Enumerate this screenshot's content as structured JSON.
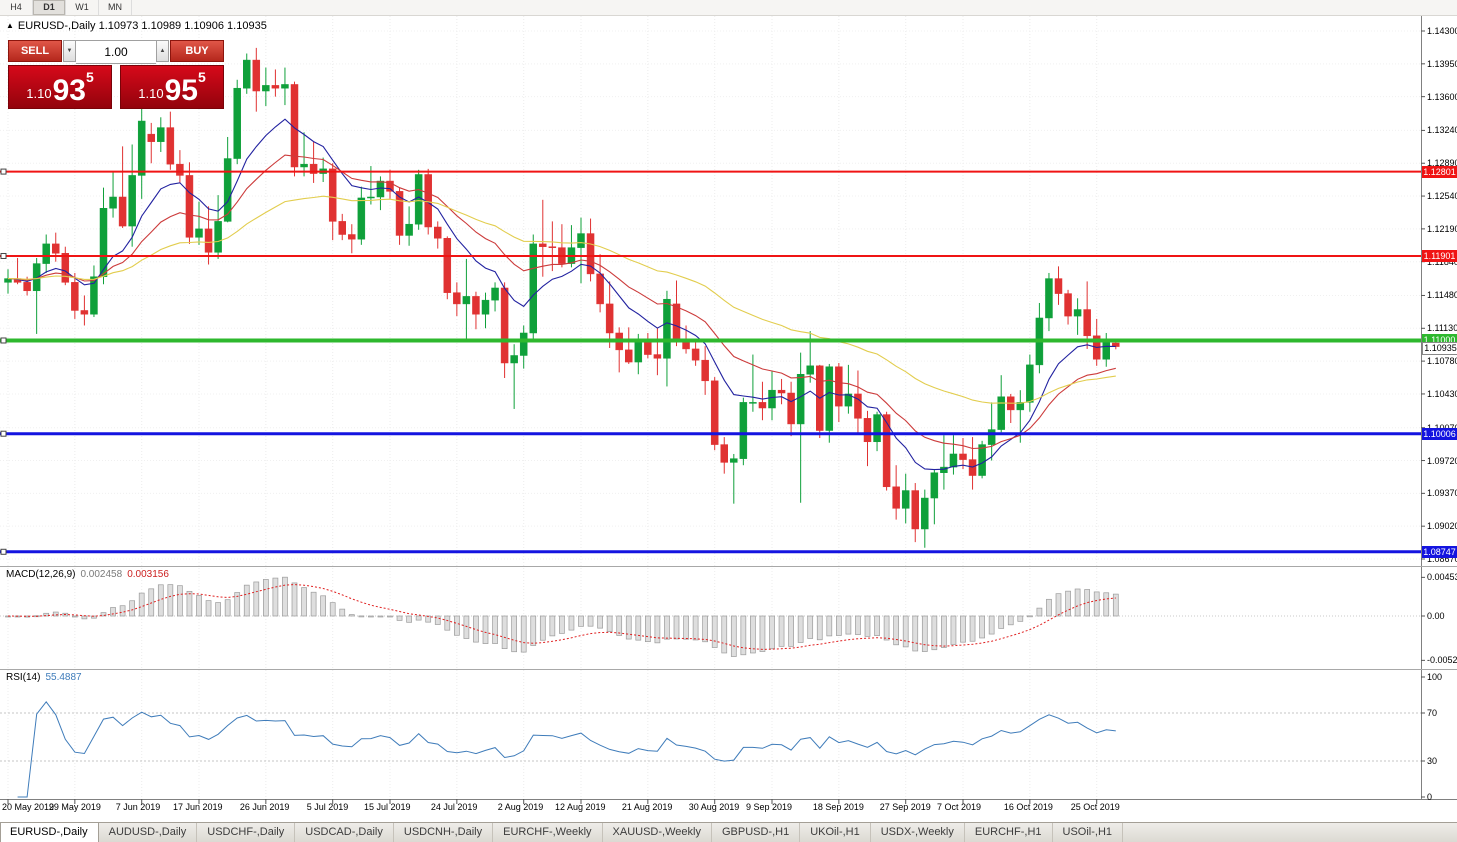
{
  "toolbar": {
    "timeframes": [
      {
        "label": "H4",
        "active": false
      },
      {
        "label": "D1",
        "active": true
      },
      {
        "label": "W1",
        "active": false
      },
      {
        "label": "MN",
        "active": false
      }
    ]
  },
  "chart": {
    "collapse_icon": "▲",
    "title": "EURUSD-,Daily 1.10973 1.10989 1.10906 1.10935"
  },
  "trade": {
    "sell_label": "SELL",
    "buy_label": "BUY",
    "volume": "1.00",
    "spin_down_icon": "▼",
    "spin_up_icon": "▲",
    "bid": {
      "prefix": "1.10",
      "big": "93",
      "sup": "5"
    },
    "ask": {
      "prefix": "1.10",
      "big": "95",
      "sup": "5"
    }
  },
  "indicators": {
    "macd": {
      "name": "MACD(12,26,9)",
      "main": "0.002458",
      "signal": "0.003156",
      "axis": [
        "0.00453",
        "0.00",
        "-0.00520"
      ]
    },
    "rsi": {
      "name": "RSI(14)",
      "value": "55.4887",
      "axis": [
        "100",
        "70",
        "30",
        "0"
      ]
    }
  },
  "tabs": [
    {
      "label": "EURUSD-,Daily",
      "active": true
    },
    {
      "label": "AUDUSD-,Daily",
      "active": false
    },
    {
      "label": "USDCHF-,Daily",
      "active": false
    },
    {
      "label": "USDCAD-,Daily",
      "active": false
    },
    {
      "label": "USDCNH-,Daily",
      "active": false
    },
    {
      "label": "EURCHF-,Weekly",
      "active": false
    },
    {
      "label": "XAUUSD-,Weekly",
      "active": false
    },
    {
      "label": "GBPUSD-,H1",
      "active": false
    },
    {
      "label": "UKOil-,H1",
      "active": false
    },
    {
      "label": "USDX-,Weekly",
      "active": false
    },
    {
      "label": "EURCHF-,H1",
      "active": false
    },
    {
      "label": "USOil-,H1",
      "active": false
    }
  ],
  "chart_data": {
    "type": "candlestick",
    "symbol": "EURUSD-",
    "period": "Daily",
    "ohlc_current": {
      "open": "1.10973",
      "high": "1.10989",
      "low": "1.10906",
      "close": "1.10935"
    },
    "up_color": "#0fa03a",
    "down_color": "#e03232",
    "price_axis": {
      "labels": [
        "1.14300",
        "1.13950",
        "1.13600",
        "1.13240",
        "1.12890",
        "1.12540",
        "1.12190",
        "1.11840",
        "1.11480",
        "1.11130",
        "1.10780",
        "1.10430",
        "1.10070",
        "1.09720",
        "1.09370",
        "1.09020",
        "1.08670"
      ],
      "max": 1.143,
      "min": 1.0867
    },
    "levels": [
      {
        "value": 1.12801,
        "label": "1.12801",
        "color": "#f01414",
        "width": 2
      },
      {
        "value": 1.11901,
        "label": "1.11901",
        "color": "#f01414",
        "width": 2
      },
      {
        "value": 1.11,
        "label": "1.11000",
        "color": "#2eb82e",
        "width": 4
      },
      {
        "value": 1.10006,
        "label": "1.10006",
        "color": "#1414e0",
        "width": 3
      },
      {
        "value": 1.08747,
        "label": "1.08747",
        "color": "#1414e0",
        "width": 3
      }
    ],
    "current_price": {
      "label": "1.10935",
      "value": 1.10935
    },
    "ma": [
      {
        "name": "ma-fast-blue",
        "period": 10,
        "color": "#2222a0"
      },
      {
        "name": "ma-mid-red",
        "period": 20,
        "color": "#cc3b3b"
      },
      {
        "name": "ma-slow-yellow",
        "period": 45,
        "color": "#e2cd4e"
      }
    ],
    "date_labels": [
      {
        "index": 0,
        "label": "20 May 2019"
      },
      {
        "index": 7,
        "label": "29 May 2019"
      },
      {
        "index": 14,
        "label": "7 Jun 2019"
      },
      {
        "index": 20,
        "label": "17 Jun 2019"
      },
      {
        "index": 27,
        "label": "26 Jun 2019"
      },
      {
        "index": 34,
        "label": "5 Jul 2019"
      },
      {
        "index": 40,
        "label": "15 Jul 2019"
      },
      {
        "index": 47,
        "label": "24 Jul 2019"
      },
      {
        "index": 54,
        "label": "2 Aug 2019"
      },
      {
        "index": 60,
        "label": "12 Aug 2019"
      },
      {
        "index": 67,
        "label": "21 Aug 2019"
      },
      {
        "index": 74,
        "label": "30 Aug 2019"
      },
      {
        "index": 80,
        "label": "9 Sep 2019"
      },
      {
        "index": 87,
        "label": "18 Sep 2019"
      },
      {
        "index": 94,
        "label": "27 Sep 2019"
      },
      {
        "index": 100,
        "label": "7 Oct 2019"
      },
      {
        "index": 107,
        "label": "16 Oct 2019"
      },
      {
        "index": 114,
        "label": "25 Oct 2019"
      }
    ],
    "candles": [
      [
        1.1162,
        1.1176,
        1.115,
        1.1166
      ],
      [
        1.1166,
        1.1188,
        1.116,
        1.1162
      ],
      [
        1.1162,
        1.1168,
        1.1148,
        1.1153
      ],
      [
        1.1153,
        1.1188,
        1.1107,
        1.1182
      ],
      [
        1.1182,
        1.1213,
        1.1172,
        1.1203
      ],
      [
        1.1203,
        1.1215,
        1.1184,
        1.1193
      ],
      [
        1.1193,
        1.12,
        1.1159,
        1.1162
      ],
      [
        1.1162,
        1.1172,
        1.1123,
        1.1132
      ],
      [
        1.1132,
        1.1148,
        1.1116,
        1.1128
      ],
      [
        1.1128,
        1.118,
        1.1125,
        1.1168
      ],
      [
        1.1168,
        1.1263,
        1.116,
        1.1241
      ],
      [
        1.1241,
        1.128,
        1.1231,
        1.1253
      ],
      [
        1.1253,
        1.1307,
        1.122,
        1.1222
      ],
      [
        1.1222,
        1.1309,
        1.12,
        1.1276
      ],
      [
        1.1276,
        1.1348,
        1.1251,
        1.1334
      ],
      [
        1.132,
        1.1332,
        1.1289,
        1.1312
      ],
      [
        1.1312,
        1.1338,
        1.1301,
        1.1327
      ],
      [
        1.1327,
        1.1344,
        1.1282,
        1.1288
      ],
      [
        1.1288,
        1.1303,
        1.1268,
        1.1276
      ],
      [
        1.1276,
        1.129,
        1.1203,
        1.121
      ],
      [
        1.121,
        1.1248,
        1.1202,
        1.1219
      ],
      [
        1.1219,
        1.1243,
        1.1181,
        1.1194
      ],
      [
        1.1194,
        1.1255,
        1.1187,
        1.1227
      ],
      [
        1.1227,
        1.1317,
        1.1226,
        1.1294
      ],
      [
        1.1294,
        1.1378,
        1.1288,
        1.1369
      ],
      [
        1.1369,
        1.1406,
        1.1363,
        1.1399
      ],
      [
        1.1399,
        1.1412,
        1.1344,
        1.1366
      ],
      [
        1.1366,
        1.1391,
        1.135,
        1.1372
      ],
      [
        1.1372,
        1.1389,
        1.136,
        1.1369
      ],
      [
        1.1369,
        1.1391,
        1.1351,
        1.1373
      ],
      [
        1.1373,
        1.1376,
        1.1275,
        1.1285
      ],
      [
        1.1285,
        1.1322,
        1.1275,
        1.1288
      ],
      [
        1.1288,
        1.1312,
        1.1268,
        1.1278
      ],
      [
        1.1278,
        1.1295,
        1.1269,
        1.1283
      ],
      [
        1.1283,
        1.1289,
        1.1207,
        1.1227
      ],
      [
        1.1227,
        1.1235,
        1.1207,
        1.1213
      ],
      [
        1.1213,
        1.1224,
        1.1193,
        1.1208
      ],
      [
        1.1208,
        1.1264,
        1.1202,
        1.1252
      ],
      [
        1.1252,
        1.1286,
        1.1245,
        1.1253
      ],
      [
        1.1253,
        1.1275,
        1.1239,
        1.127
      ],
      [
        1.127,
        1.1282,
        1.1251,
        1.1259
      ],
      [
        1.1259,
        1.1263,
        1.1202,
        1.1212
      ],
      [
        1.1212,
        1.1243,
        1.1201,
        1.1224
      ],
      [
        1.1224,
        1.1282,
        1.1218,
        1.1277
      ],
      [
        1.1277,
        1.1283,
        1.1213,
        1.1221
      ],
      [
        1.1221,
        1.1227,
        1.1198,
        1.1209
      ],
      [
        1.1209,
        1.1211,
        1.1144,
        1.1151
      ],
      [
        1.1151,
        1.1162,
        1.1126,
        1.1139
      ],
      [
        1.1139,
        1.1187,
        1.1102,
        1.1147
      ],
      [
        1.1147,
        1.1152,
        1.1112,
        1.1128
      ],
      [
        1.1128,
        1.1151,
        1.1113,
        1.1143
      ],
      [
        1.1143,
        1.1162,
        1.1131,
        1.1156
      ],
      [
        1.1156,
        1.1162,
        1.106,
        1.1076
      ],
      [
        1.1076,
        1.1096,
        1.1027,
        1.1084
      ],
      [
        1.1084,
        1.1116,
        1.107,
        1.1108
      ],
      [
        1.1108,
        1.1213,
        1.1101,
        1.1203
      ],
      [
        1.1203,
        1.125,
        1.1168,
        1.12
      ],
      [
        1.12,
        1.1227,
        1.1174,
        1.1199
      ],
      [
        1.1199,
        1.1224,
        1.1178,
        1.1182
      ],
      [
        1.1182,
        1.1223,
        1.1178,
        1.1199
      ],
      [
        1.1199,
        1.1231,
        1.1161,
        1.1214
      ],
      [
        1.1214,
        1.123,
        1.1163,
        1.1171
      ],
      [
        1.1171,
        1.1192,
        1.113,
        1.1139
      ],
      [
        1.1139,
        1.1163,
        1.1092,
        1.1108
      ],
      [
        1.1108,
        1.1114,
        1.1066,
        1.109
      ],
      [
        1.109,
        1.1114,
        1.1075,
        1.1077
      ],
      [
        1.1077,
        1.1107,
        1.1064,
        1.1099
      ],
      [
        1.1099,
        1.1108,
        1.1081,
        1.1085
      ],
      [
        1.1085,
        1.1113,
        1.1063,
        1.1081
      ],
      [
        1.1081,
        1.1153,
        1.1051,
        1.1144
      ],
      [
        1.1139,
        1.1164,
        1.1094,
        1.1101
      ],
      [
        1.1101,
        1.1116,
        1.1086,
        1.1091
      ],
      [
        1.1091,
        1.1098,
        1.1073,
        1.1079
      ],
      [
        1.1079,
        1.1094,
        1.1042,
        1.1057
      ],
      [
        1.1057,
        1.1061,
        1.0983,
        1.0989
      ],
      [
        1.0989,
        1.0997,
        1.0958,
        1.097
      ],
      [
        1.097,
        1.0979,
        1.0926,
        1.0974
      ],
      [
        1.0974,
        1.1039,
        1.0967,
        1.1034
      ],
      [
        1.1034,
        1.1085,
        1.1024,
        1.1034
      ],
      [
        1.1034,
        1.1056,
        1.1015,
        1.1028
      ],
      [
        1.1028,
        1.1067,
        1.1015,
        1.1047
      ],
      [
        1.1047,
        1.1059,
        1.1032,
        1.1044
      ],
      [
        1.1044,
        1.1056,
        1.0998,
        1.1011
      ],
      [
        1.1011,
        1.1087,
        1.0927,
        1.1064
      ],
      [
        1.1064,
        1.111,
        1.1055,
        1.1073
      ],
      [
        1.1073,
        1.1074,
        1.0996,
        1.1004
      ],
      [
        1.1004,
        1.1075,
        1.0991,
        1.1072
      ],
      [
        1.1072,
        1.1076,
        1.1013,
        1.103
      ],
      [
        1.103,
        1.1074,
        1.1022,
        1.1043
      ],
      [
        1.1043,
        1.1068,
        1.1,
        1.1017
      ],
      [
        1.1017,
        1.1025,
        1.0966,
        1.0992
      ],
      [
        1.0992,
        1.1024,
        1.0982,
        1.1021
      ],
      [
        1.1021,
        1.1024,
        1.094,
        1.0944
      ],
      [
        1.0944,
        1.0967,
        1.0909,
        1.0921
      ],
      [
        1.0921,
        1.0958,
        1.0905,
        1.094
      ],
      [
        1.094,
        1.0948,
        1.0885,
        1.0899
      ],
      [
        1.0899,
        1.0941,
        1.0879,
        1.0932
      ],
      [
        1.0932,
        1.0963,
        1.0904,
        1.0959
      ],
      [
        1.0959,
        1.0999,
        1.0941,
        1.0965
      ],
      [
        1.0965,
        1.0999,
        1.0957,
        1.0979
      ],
      [
        1.0979,
        1.0996,
        1.0963,
        1.0973
      ],
      [
        1.0973,
        1.0997,
        1.0941,
        1.0956
      ],
      [
        1.0956,
        1.0993,
        1.0953,
        1.0989
      ],
      [
        1.0989,
        1.1034,
        1.0972,
        1.1005
      ],
      [
        1.1005,
        1.1063,
        1.1002,
        1.104
      ],
      [
        1.104,
        1.1043,
        1.1012,
        1.1026
      ],
      [
        1.1026,
        1.1047,
        1.0991,
        1.1034
      ],
      [
        1.1034,
        1.1085,
        1.1024,
        1.1074
      ],
      [
        1.1074,
        1.114,
        1.1065,
        1.1124
      ],
      [
        1.1124,
        1.1172,
        1.111,
        1.1166
      ],
      [
        1.1166,
        1.1179,
        1.1138,
        1.115
      ],
      [
        1.115,
        1.1154,
        1.1117,
        1.1126
      ],
      [
        1.1126,
        1.1145,
        1.1106,
        1.1133
      ],
      [
        1.1133,
        1.1163,
        1.1091,
        1.1105
      ],
      [
        1.1105,
        1.1123,
        1.1073,
        1.108
      ],
      [
        1.108,
        1.1108,
        1.1072,
        1.1099
      ],
      [
        1.10973,
        1.10989,
        1.10906,
        1.10935
      ]
    ]
  }
}
